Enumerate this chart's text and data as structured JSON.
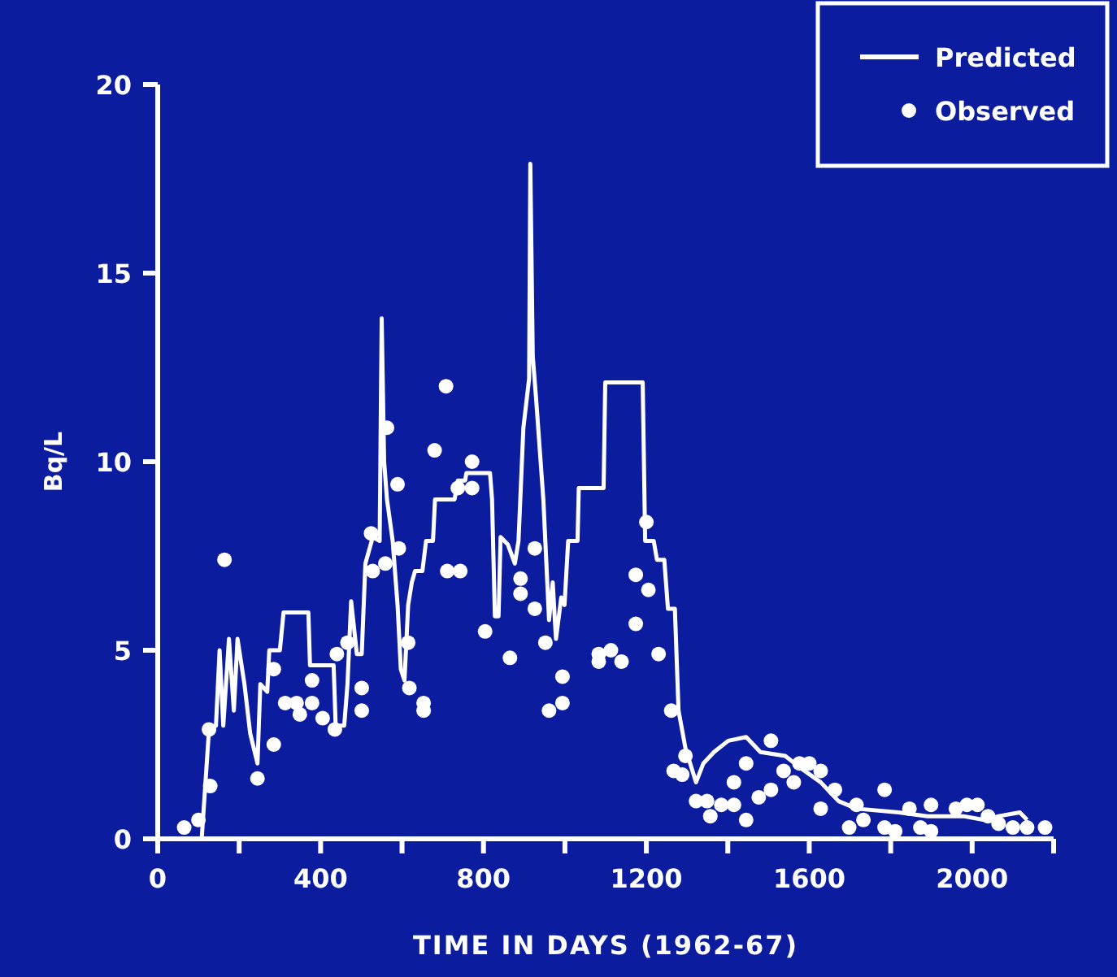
{
  "chart_data": {
    "type": "line",
    "xlabel": "TIME IN DAYS (1962-67)",
    "ylabel": "Bq/L",
    "xlim": [
      0,
      2200
    ],
    "ylim": [
      0,
      20
    ],
    "xticks": [
      0,
      {
        "value": 200,
        "label": null
      },
      400,
      {
        "value": 600,
        "label": null
      },
      800,
      {
        "value": 1000,
        "label": null
      },
      1200,
      {
        "value": 1400,
        "label": null
      },
      1600,
      {
        "value": 1800,
        "label": null
      },
      2000,
      {
        "value": 2200,
        "label": null
      }
    ],
    "yticks": [
      0,
      5,
      10,
      15,
      20
    ],
    "grid": false,
    "legend": "top right",
    "series": [
      {
        "name": "Predicted",
        "type": "line",
        "color": "#ffffff",
        "marker": "none",
        "line_style": "solid",
        "x": [
          108,
          126,
          143,
          152,
          161,
          175,
          187,
          196,
          213,
          227,
          245,
          252,
          269,
          274,
          300,
          309,
          370,
          374,
          432,
          437,
          458,
          466,
          475,
          489,
          501,
          510,
          528,
          545,
          550,
          556,
          563,
          577,
          589,
          597,
          606,
          615,
          624,
          632,
          650,
          659,
          676,
          681,
          729,
          737,
          755,
          758,
          816,
          821,
          828,
          837,
          842,
          860,
          877,
          886,
          898,
          912,
          915,
          921,
          929,
          947,
          961,
          970,
          978,
          991,
          999,
          1008,
          1031,
          1034,
          1095,
          1099,
          1191,
          1197,
          1218,
          1226,
          1244,
          1253,
          1270,
          1279,
          1296,
          1322,
          1340,
          1366,
          1401,
          1445,
          1480,
          1541,
          1576,
          1628,
          1672,
          1716,
          1820,
          1890,
          1978,
          2030,
          2065,
          2117,
          2135
        ],
        "values": [
          0,
          2.9,
          3.0,
          5.0,
          3.0,
          5.3,
          3.4,
          5.3,
          4.1,
          2.8,
          2.0,
          4.1,
          3.9,
          5.0,
          5.0,
          6.0,
          6.0,
          4.6,
          4.6,
          3.0,
          3.0,
          4.1,
          6.3,
          4.9,
          4.9,
          7.3,
          8.0,
          7.9,
          13.8,
          10.0,
          9.0,
          7.9,
          6.2,
          4.5,
          4.2,
          6.2,
          6.8,
          7.1,
          7.1,
          7.9,
          7.9,
          9.0,
          9.0,
          9.5,
          9.5,
          9.7,
          9.7,
          9.0,
          5.9,
          5.9,
          8.0,
          7.8,
          7.3,
          7.9,
          10.9,
          12.2,
          17.9,
          12.8,
          11.7,
          9.0,
          5.8,
          6.8,
          5.3,
          6.4,
          6.2,
          7.9,
          7.9,
          9.3,
          9.3,
          12.1,
          12.1,
          7.9,
          7.9,
          7.4,
          7.4,
          6.1,
          6.1,
          3.4,
          2.4,
          1.5,
          2.0,
          2.3,
          2.6,
          2.7,
          2.3,
          2.2,
          1.9,
          1.5,
          1.0,
          0.8,
          0.7,
          0.6,
          0.6,
          0.5,
          0.6,
          0.7,
          0.5
        ]
      },
      {
        "name": "Observed",
        "type": "scatter",
        "color": "#ffffff",
        "marker": "circle",
        "x": [
          65,
          100,
          129,
          126,
          164,
          245,
          285,
          285,
          313,
          341,
          349,
          379,
          379,
          405,
          435,
          440,
          466,
          501,
          501,
          524,
          528,
          563,
          559,
          589,
          592,
          615,
          618,
          653,
          653,
          680,
          708,
          711,
          743,
          737,
          772,
          772,
          804,
          865,
          891,
          891,
          926,
          926,
          952,
          961,
          994,
          994,
          1083,
          1083,
          1113,
          1139,
          1174,
          1174,
          1200,
          1205,
          1230,
          1261,
          1267,
          1288,
          1296,
          1322,
          1357,
          1349,
          1384,
          1415,
          1415,
          1445,
          1445,
          1476,
          1506,
          1506,
          1537,
          1562,
          1576,
          1600,
          1628,
          1628,
          1663,
          1698,
          1716,
          1733,
          1785,
          1785,
          1811,
          1846,
          1873,
          1899,
          1899,
          1960,
          1987,
          2013,
          2039,
          2065,
          2100,
          2135,
          2179
        ],
        "values": [
          0.3,
          0.5,
          1.4,
          2.9,
          7.4,
          1.6,
          2.5,
          4.5,
          3.6,
          3.6,
          3.3,
          4.2,
          3.6,
          3.2,
          2.9,
          4.9,
          5.2,
          4.0,
          3.4,
          8.1,
          7.1,
          10.9,
          7.3,
          9.4,
          7.7,
          5.2,
          4.0,
          3.6,
          3.4,
          10.3,
          12.0,
          7.1,
          7.1,
          9.3,
          10.0,
          9.3,
          5.5,
          4.8,
          6.9,
          6.5,
          7.7,
          6.1,
          5.2,
          3.4,
          3.6,
          4.3,
          4.9,
          4.7,
          5.0,
          4.7,
          5.7,
          7.0,
          8.4,
          6.6,
          4.9,
          3.4,
          1.8,
          1.7,
          2.2,
          1.0,
          0.6,
          1.0,
          0.9,
          0.9,
          1.5,
          0.5,
          2.0,
          1.1,
          1.3,
          2.6,
          1.8,
          1.5,
          2.0,
          2.0,
          1.8,
          0.8,
          1.3,
          0.3,
          0.9,
          0.5,
          1.3,
          0.3,
          0.2,
          0.8,
          0.3,
          0.2,
          0.9,
          0.8,
          0.9,
          0.9,
          0.6,
          0.4,
          0.3,
          0.3,
          0.3
        ]
      }
    ]
  }
}
